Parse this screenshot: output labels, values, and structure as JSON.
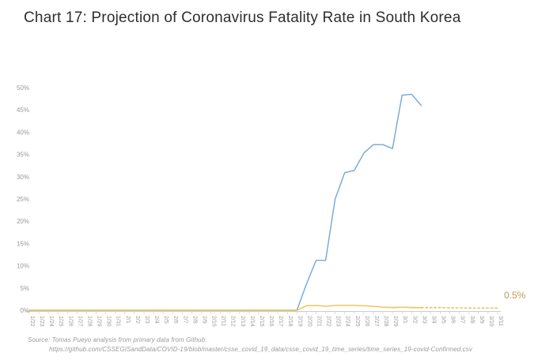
{
  "title": "Chart 17: Projection of Coronavirus Fatality Rate in South Korea",
  "annotation": {
    "label": "0.5%",
    "color": "#c89b4d"
  },
  "source": {
    "line1": "Source: Tomas Pueyo analysis from primary data from Github:",
    "line2": "https://github.com/CSSEGISandData/COVID-19/blob/master/csse_covid_19_data/csse_covid_19_time_series/time_series_19-covid-Confirmed.csv"
  },
  "chart_data": {
    "type": "line",
    "title": "Chart 17: Projection of Coronavirus Fatality Rate in South Korea",
    "xlabel": "",
    "ylabel": "",
    "ylim": [
      0,
      50
    ],
    "grid": false,
    "legend": "none",
    "axis_color": "#cccccc",
    "tick_label_color": "#999999",
    "yticks": [
      "0%",
      "5%",
      "10%",
      "15%",
      "20%",
      "25%",
      "30%",
      "35%",
      "40%",
      "45%",
      "50%"
    ],
    "categories": [
      "1/22",
      "1/23",
      "1/24",
      "1/25",
      "1/26",
      "1/27",
      "1/28",
      "1/29",
      "1/30",
      "1/31",
      "2/1",
      "2/2",
      "2/3",
      "2/4",
      "2/5",
      "2/6",
      "2/7",
      "2/8",
      "2/9",
      "2/10",
      "2/11",
      "2/12",
      "2/13",
      "2/14",
      "2/15",
      "2/16",
      "2/17",
      "2/18",
      "2/19",
      "2/20",
      "2/21",
      "2/22",
      "2/23",
      "2/24",
      "2/25",
      "2/26",
      "2/27",
      "2/28",
      "2/29",
      "3/1",
      "3/2",
      "3/3",
      "3/4",
      "3/5",
      "3/6",
      "3/7",
      "3/8",
      "3/9",
      "3/10",
      "3/11"
    ],
    "series": [
      {
        "name": "blue-projected-fatality-rate",
        "color": "#6fa8dc",
        "style": "solid",
        "values": [
          0,
          0,
          0,
          0,
          0,
          0,
          0,
          0,
          0,
          0,
          0,
          0,
          0,
          0,
          0,
          0,
          0,
          0,
          0,
          0,
          0,
          0,
          0,
          0,
          0,
          0,
          0,
          0,
          0,
          5.9,
          11.2,
          11.2,
          25.0,
          30.9,
          31.4,
          35.3,
          37.2,
          37.2,
          36.3,
          48.3,
          48.5,
          46.0,
          null,
          null,
          null,
          null,
          null,
          null,
          null,
          null
        ]
      },
      {
        "name": "orange-actual-fatality-rate",
        "color": "#efc14b",
        "style": "solid",
        "values": [
          0,
          0,
          0,
          0,
          0,
          0,
          0,
          0,
          0,
          0,
          0,
          0,
          0,
          0,
          0,
          0,
          0,
          0,
          0,
          0,
          0,
          0,
          0,
          0,
          0,
          0,
          0,
          0,
          0,
          1.0,
          1.1,
          0.9,
          1.1,
          1.1,
          1.1,
          1.0,
          0.9,
          0.7,
          0.6,
          0.7,
          0.6,
          0.6,
          null,
          null,
          null,
          null,
          null,
          null,
          null,
          null
        ]
      },
      {
        "name": "orange-dashed-projection",
        "color": "#eab94e",
        "style": "dashed",
        "values": [
          null,
          null,
          null,
          null,
          null,
          null,
          null,
          null,
          null,
          null,
          null,
          null,
          null,
          null,
          null,
          null,
          null,
          null,
          null,
          null,
          null,
          null,
          null,
          null,
          null,
          null,
          null,
          null,
          null,
          null,
          null,
          null,
          null,
          null,
          null,
          null,
          null,
          null,
          null,
          null,
          null,
          0.6,
          0.6,
          0.6,
          0.55,
          0.55,
          0.5,
          0.5,
          0.5,
          0.5
        ]
      }
    ]
  }
}
